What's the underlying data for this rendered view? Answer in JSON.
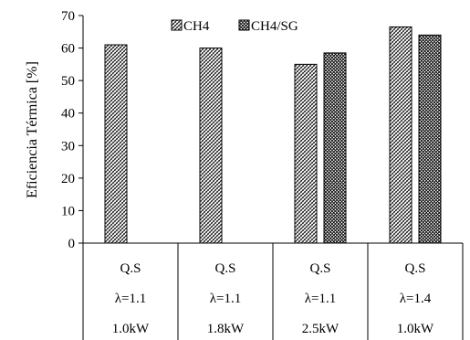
{
  "chart_data": {
    "type": "bar",
    "ylabel": "Eficiencia Térmica [%]",
    "ylim": [
      0,
      70
    ],
    "yticks": [
      0,
      10,
      20,
      30,
      40,
      50,
      60,
      70
    ],
    "grid": false,
    "legend_position": "top-center",
    "categories": [
      [
        "Q.S",
        "λ=1.1",
        "1.0kW"
      ],
      [
        "Q.S",
        "λ=1.1",
        "1.8kW"
      ],
      [
        "Q.S",
        "λ=1.1",
        "2.5kW"
      ],
      [
        "Q.S",
        "λ=1.4",
        "1.0kW"
      ]
    ],
    "series": [
      {
        "name": "CH4",
        "values": [
          61,
          60,
          55,
          66.5
        ]
      },
      {
        "name": "CH4/SG",
        "values": [
          null,
          null,
          58.5,
          64
        ]
      }
    ]
  }
}
